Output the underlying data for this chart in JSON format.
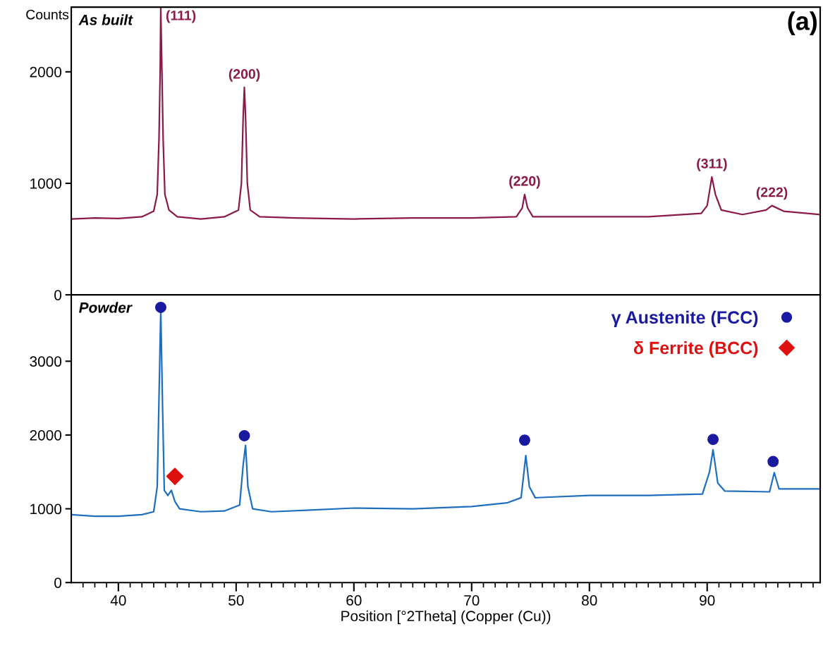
{
  "chart_data": [
    {
      "type": "line",
      "ylabel": "Counts",
      "xlim": [
        36,
        99.6
      ],
      "ylim": [
        0,
        2580
      ],
      "yticks": [
        0,
        1000,
        2000
      ],
      "tick_labels": "y",
      "grid": false,
      "legend": false,
      "annotations": [
        "As built",
        "(a)",
        {
          "text": "(111)",
          "x": 43.6,
          "y": 2570
        },
        {
          "text": "(200)",
          "x": 50.7,
          "y": 1860
        },
        {
          "text": "(220)",
          "x": 74.5,
          "y": 900
        },
        {
          "text": "(311)",
          "x": 90.4,
          "y": 1057
        },
        {
          "text": "(222)",
          "x": 95.5,
          "y": 800
        }
      ],
      "series": [
        {
          "color": "#8b1a4a",
          "x": [
            36,
            38,
            40,
            42,
            43.0,
            43.3,
            43.45,
            43.55,
            43.6,
            43.7,
            43.8,
            43.95,
            44.3,
            45,
            47,
            49,
            50.2,
            50.45,
            50.6,
            50.7,
            50.8,
            50.95,
            51.2,
            52,
            55,
            60,
            65,
            70,
            73.8,
            74.3,
            74.5,
            74.75,
            75.2,
            80,
            85,
            89.5,
            90.0,
            90.4,
            90.7,
            91.2,
            93,
            95,
            95.5,
            96.5,
            99.6
          ],
          "values": [
            680,
            690,
            685,
            700,
            750,
            900,
            1400,
            2000,
            2570,
            2000,
            1400,
            900,
            760,
            700,
            680,
            700,
            760,
            1000,
            1600,
            1860,
            1600,
            1000,
            760,
            700,
            690,
            680,
            690,
            690,
            700,
            780,
            900,
            780,
            700,
            700,
            700,
            730,
            800,
            1057,
            900,
            760,
            720,
            760,
            800,
            750,
            720
          ]
        }
      ]
    },
    {
      "type": "line",
      "xlabel": "Position [°2Theta] (Copper (Cu))",
      "xlim": [
        36,
        99.6
      ],
      "ylim": [
        0,
        3900
      ],
      "yticks": [
        0,
        1000,
        2000,
        3000
      ],
      "grid": false,
      "legend": "top right",
      "xticks": [
        {
          "value": 37,
          "label": null
        },
        {
          "value": 38,
          "label": null
        },
        {
          "value": 39,
          "label": null
        },
        40,
        {
          "value": 41,
          "label": null
        },
        {
          "value": 42,
          "label": null
        },
        {
          "value": 43,
          "label": null
        },
        {
          "value": 44,
          "label": null
        },
        {
          "value": 45,
          "label": null
        },
        {
          "value": 46,
          "label": null
        },
        {
          "value": 47,
          "label": null
        },
        {
          "value": 48,
          "label": null
        },
        {
          "value": 49,
          "label": null
        },
        50,
        {
          "value": 51,
          "label": null
        },
        {
          "value": 52,
          "label": null
        },
        {
          "value": 53,
          "label": null
        },
        {
          "value": 54,
          "label": null
        },
        {
          "value": 55,
          "label": null
        },
        {
          "value": 56,
          "label": null
        },
        {
          "value": 57,
          "label": null
        },
        {
          "value": 58,
          "label": null
        },
        {
          "value": 59,
          "label": null
        },
        60,
        {
          "value": 61,
          "label": null
        },
        {
          "value": 62,
          "label": null
        },
        {
          "value": 63,
          "label": null
        },
        {
          "value": 64,
          "label": null
        },
        {
          "value": 65,
          "label": null
        },
        {
          "value": 66,
          "label": null
        },
        {
          "value": 67,
          "label": null
        },
        {
          "value": 68,
          "label": null
        },
        {
          "value": 69,
          "label": null
        },
        70,
        {
          "value": 71,
          "label": null
        },
        {
          "value": 72,
          "label": null
        },
        {
          "value": 73,
          "label": null
        },
        {
          "value": 74,
          "label": null
        },
        {
          "value": 75,
          "label": null
        },
        {
          "value": 76,
          "label": null
        },
        {
          "value": 77,
          "label": null
        },
        {
          "value": 78,
          "label": null
        },
        {
          "value": 79,
          "label": null
        },
        80,
        {
          "value": 81,
          "label": null
        },
        {
          "value": 82,
          "label": null
        },
        {
          "value": 83,
          "label": null
        },
        {
          "value": 84,
          "label": null
        },
        {
          "value": 85,
          "label": null
        },
        {
          "value": 86,
          "label": null
        },
        {
          "value": 87,
          "label": null
        },
        {
          "value": 88,
          "label": null
        },
        {
          "value": 89,
          "label": null
        },
        90,
        {
          "value": 91,
          "label": null
        },
        {
          "value": 92,
          "label": null
        },
        {
          "value": 93,
          "label": null
        },
        {
          "value": 94,
          "label": null
        },
        {
          "value": 95,
          "label": null
        },
        {
          "value": 96,
          "label": null
        },
        {
          "value": 97,
          "label": null
        },
        {
          "value": 98,
          "label": null
        },
        {
          "value": 99,
          "label": null
        }
      ],
      "annotations": [
        "Powder"
      ],
      "series": [
        {
          "color": "#1f6fbf",
          "x": [
            36,
            38,
            40,
            42,
            43.0,
            43.3,
            43.45,
            43.6,
            43.75,
            43.9,
            44.2,
            44.5,
            44.8,
            45.2,
            47,
            49,
            50.3,
            50.6,
            50.8,
            51.0,
            51.4,
            53,
            56,
            60,
            65,
            70,
            73,
            74.2,
            74.6,
            74.9,
            75.4,
            80,
            85,
            89.6,
            90.2,
            90.5,
            90.9,
            91.5,
            95.3,
            95.7,
            96.1,
            99.6
          ],
          "values": [
            920,
            900,
            900,
            920,
            960,
            1300,
            2500,
            3700,
            2400,
            1250,
            1180,
            1250,
            1100,
            1000,
            960,
            970,
            1050,
            1600,
            1860,
            1300,
            1000,
            960,
            980,
            1010,
            1000,
            1030,
            1080,
            1150,
            1720,
            1300,
            1150,
            1180,
            1180,
            1200,
            1500,
            1800,
            1350,
            1240,
            1230,
            1490,
            1270,
            1270
          ]
        },
        {
          "type": "scatter",
          "name": "γ Austenite (FCC)",
          "color": "#1a1aa0",
          "marker": "circle",
          "x": [
            43.6,
            50.7,
            74.5,
            90.5,
            95.6
          ],
          "values": [
            3730,
            1990,
            1930,
            1940,
            1640
          ]
        },
        {
          "type": "scatter",
          "name": "δ Ferrite (BCC)",
          "color": "#e01010",
          "marker": "diamond",
          "x": [
            44.8
          ],
          "values": [
            1440
          ]
        }
      ]
    }
  ]
}
